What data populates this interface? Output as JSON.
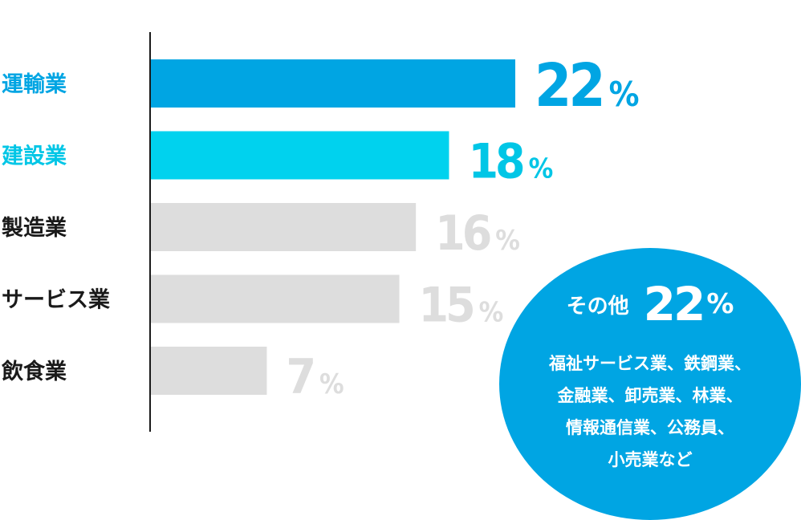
{
  "chart_data": {
    "type": "bar",
    "orientation": "horizontal",
    "categories": [
      "運輸業",
      "建設業",
      "製造業",
      "サービス業",
      "飲食業"
    ],
    "values": [
      22,
      18,
      16,
      15,
      7
    ],
    "value_labels": [
      "22",
      "18",
      "16",
      "15",
      "7"
    ],
    "unit": "%",
    "colors": [
      "#00a5e3",
      "#00d2ee",
      "#dddddd",
      "#dddddd",
      "#dddddd"
    ],
    "label_colors": [
      "#00a5e3",
      "#00c6e6",
      "#1a1a1a",
      "#1a1a1a",
      "#1a1a1a"
    ],
    "value_colors": [
      "#00a5e3",
      "#00c6e6",
      "#dddddd",
      "#dddddd",
      "#dddddd"
    ],
    "xlim": [
      0,
      22
    ],
    "grid": false
  },
  "other": {
    "title": "その他",
    "value": "22",
    "unit": "%",
    "description_lines": [
      "福祉サービス業、鉄鋼業、",
      "金融業、卸売業、林業、",
      "情報通信業、公務員、",
      "小売業など"
    ],
    "color": "#00a5e3"
  }
}
